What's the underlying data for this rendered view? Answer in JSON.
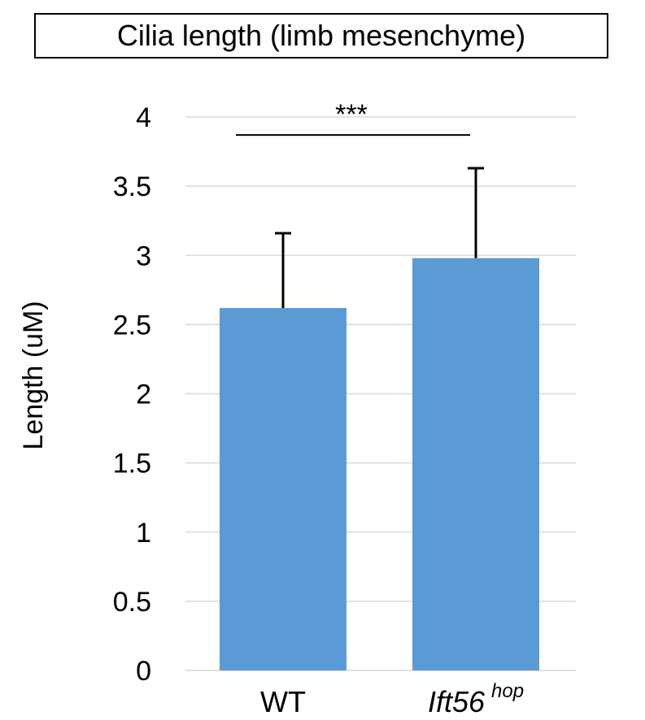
{
  "chart_data": {
    "type": "bar",
    "title": "Cilia length (limb mesenchyme)",
    "xlabel": "",
    "ylabel": "Length (uM)",
    "ylim": [
      0,
      4
    ],
    "yticks": [
      "0",
      "0.5",
      "1",
      "1.5",
      "2",
      "2.5",
      "3",
      "3.5",
      "4"
    ],
    "grid": true,
    "categories": [
      {
        "main": "WT",
        "sup": ""
      },
      {
        "main": "Ift56",
        "sup": "hop"
      }
    ],
    "values": [
      2.62,
      2.98
    ],
    "error": [
      0.54,
      0.65
    ],
    "significance": {
      "label": "***",
      "between": [
        0,
        1
      ],
      "y": 3.87
    },
    "bar_color": "#5b9bd5"
  }
}
